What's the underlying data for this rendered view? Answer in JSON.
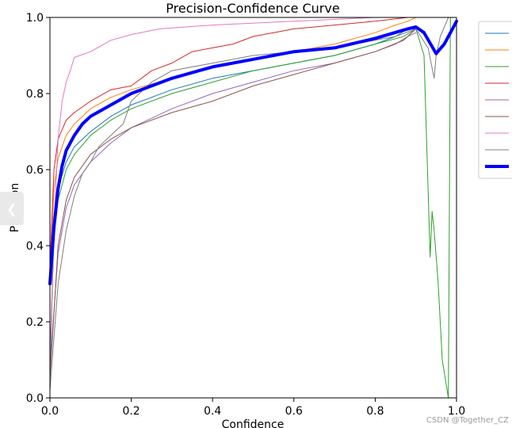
{
  "watermark": "CSDN @Together_CZ",
  "colors": {
    "background": "#ffffff",
    "axis": "#000000",
    "legend_border": "#cccccc",
    "side_handle": "#e9e9e9"
  },
  "side_handle_icon": "chevron-left-icon",
  "chart_data": {
    "type": "line",
    "title": "Precision-Confidence Curve",
    "xlabel": "Confidence",
    "ylabel": "Precision",
    "xlim": [
      0.0,
      1.0
    ],
    "ylim": [
      0.0,
      1.0
    ],
    "xticks": [
      "0.0",
      "0.2",
      "0.4",
      "0.6",
      "0.8",
      "1.0"
    ],
    "yticks": [
      "0.0",
      "0.2",
      "0.4",
      "0.6",
      "0.8",
      "1.0"
    ],
    "grid": false,
    "legend_placement": "outside right, partially clipped",
    "series": [
      {
        "color": "#1f77b4",
        "width": 1,
        "points": [
          [
            0,
            0.05
          ],
          [
            0.01,
            0.45
          ],
          [
            0.02,
            0.55
          ],
          [
            0.04,
            0.62
          ],
          [
            0.06,
            0.66
          ],
          [
            0.1,
            0.7
          ],
          [
            0.15,
            0.74
          ],
          [
            0.2,
            0.77
          ],
          [
            0.3,
            0.81
          ],
          [
            0.4,
            0.84
          ],
          [
            0.5,
            0.86
          ],
          [
            0.6,
            0.88
          ],
          [
            0.7,
            0.9
          ],
          [
            0.8,
            0.93
          ],
          [
            0.85,
            0.95
          ],
          [
            0.88,
            0.97
          ],
          [
            0.9,
            0.97
          ]
        ]
      },
      {
        "color": "#ff7f0e",
        "width": 1,
        "points": [
          [
            0,
            0.3
          ],
          [
            0.01,
            0.55
          ],
          [
            0.02,
            0.63
          ],
          [
            0.04,
            0.69
          ],
          [
            0.06,
            0.72
          ],
          [
            0.1,
            0.76
          ],
          [
            0.15,
            0.79
          ],
          [
            0.2,
            0.81
          ],
          [
            0.3,
            0.84
          ],
          [
            0.4,
            0.87
          ],
          [
            0.5,
            0.89
          ],
          [
            0.6,
            0.91
          ],
          [
            0.7,
            0.93
          ],
          [
            0.8,
            0.96
          ],
          [
            0.85,
            0.98
          ],
          [
            0.88,
            0.99
          ],
          [
            0.9,
            1.0
          ]
        ]
      },
      {
        "color": "#2ca02c",
        "width": 1,
        "points": [
          [
            0,
            0.1
          ],
          [
            0.01,
            0.42
          ],
          [
            0.02,
            0.52
          ],
          [
            0.04,
            0.6
          ],
          [
            0.06,
            0.64
          ],
          [
            0.1,
            0.69
          ],
          [
            0.15,
            0.73
          ],
          [
            0.2,
            0.76
          ],
          [
            0.3,
            0.8
          ],
          [
            0.4,
            0.83
          ],
          [
            0.5,
            0.86
          ],
          [
            0.6,
            0.88
          ],
          [
            0.7,
            0.9
          ],
          [
            0.8,
            0.93
          ],
          [
            0.87,
            0.95
          ],
          [
            0.9,
            0.97
          ],
          [
            0.92,
            0.9
          ],
          [
            0.93,
            0.55
          ],
          [
            0.935,
            0.37
          ],
          [
            0.94,
            0.49
          ],
          [
            0.945,
            0.44
          ],
          [
            0.955,
            0.3
          ],
          [
            0.965,
            0.1
          ],
          [
            0.98,
            0.0
          ],
          [
            0.985,
            1.0
          ]
        ]
      },
      {
        "color": "#d62728",
        "width": 1,
        "points": [
          [
            0,
            0.35
          ],
          [
            0.01,
            0.6
          ],
          [
            0.02,
            0.68
          ],
          [
            0.04,
            0.73
          ],
          [
            0.06,
            0.75
          ],
          [
            0.1,
            0.78
          ],
          [
            0.15,
            0.81
          ],
          [
            0.2,
            0.82
          ],
          [
            0.25,
            0.86
          ],
          [
            0.3,
            0.88
          ],
          [
            0.35,
            0.91
          ],
          [
            0.4,
            0.92
          ],
          [
            0.45,
            0.93
          ],
          [
            0.5,
            0.95
          ],
          [
            0.55,
            0.96
          ],
          [
            0.6,
            0.97
          ],
          [
            0.7,
            0.98
          ],
          [
            0.8,
            0.99
          ],
          [
            0.88,
            1.0
          ]
        ]
      },
      {
        "color": "#9467bd",
        "width": 1,
        "points": [
          [
            0,
            0.08
          ],
          [
            0.02,
            0.38
          ],
          [
            0.04,
            0.5
          ],
          [
            0.06,
            0.56
          ],
          [
            0.1,
            0.62
          ],
          [
            0.15,
            0.67
          ],
          [
            0.2,
            0.71
          ],
          [
            0.3,
            0.76
          ],
          [
            0.4,
            0.8
          ],
          [
            0.5,
            0.83
          ],
          [
            0.6,
            0.86
          ],
          [
            0.7,
            0.88
          ],
          [
            0.8,
            0.91
          ],
          [
            0.85,
            0.93
          ],
          [
            0.88,
            0.95
          ],
          [
            0.9,
            0.96
          ]
        ]
      },
      {
        "color": "#8c564b",
        "width": 1,
        "points": [
          [
            0,
            0.05
          ],
          [
            0.02,
            0.4
          ],
          [
            0.04,
            0.52
          ],
          [
            0.06,
            0.58
          ],
          [
            0.1,
            0.64
          ],
          [
            0.15,
            0.68
          ],
          [
            0.2,
            0.71
          ],
          [
            0.3,
            0.75
          ],
          [
            0.4,
            0.78
          ],
          [
            0.5,
            0.82
          ],
          [
            0.6,
            0.85
          ],
          [
            0.7,
            0.88
          ],
          [
            0.8,
            0.91
          ],
          [
            0.87,
            0.94
          ],
          [
            0.9,
            0.97
          ]
        ]
      },
      {
        "color": "#e377c2",
        "width": 1,
        "points": [
          [
            0,
            0.1
          ],
          [
            0.01,
            0.45
          ],
          [
            0.02,
            0.68
          ],
          [
            0.03,
            0.78
          ],
          [
            0.04,
            0.83
          ],
          [
            0.05,
            0.86
          ],
          [
            0.06,
            0.895
          ],
          [
            0.1,
            0.91
          ],
          [
            0.15,
            0.94
          ],
          [
            0.2,
            0.955
          ],
          [
            0.27,
            0.97
          ],
          [
            0.4,
            0.98
          ],
          [
            0.6,
            0.99
          ],
          [
            0.8,
            1.0
          ]
        ]
      },
      {
        "color": "#7f7f7f",
        "width": 1,
        "points": [
          [
            0,
            0.02
          ],
          [
            0.02,
            0.3
          ],
          [
            0.04,
            0.44
          ],
          [
            0.06,
            0.53
          ],
          [
            0.08,
            0.59
          ],
          [
            0.1,
            0.62
          ],
          [
            0.12,
            0.66
          ],
          [
            0.15,
            0.69
          ],
          [
            0.18,
            0.72
          ],
          [
            0.2,
            0.78
          ],
          [
            0.25,
            0.83
          ],
          [
            0.3,
            0.86
          ],
          [
            0.4,
            0.88
          ],
          [
            0.5,
            0.9
          ],
          [
            0.6,
            0.91
          ],
          [
            0.7,
            0.92
          ],
          [
            0.8,
            0.94
          ],
          [
            0.85,
            0.95
          ],
          [
            0.9,
            0.97
          ],
          [
            0.93,
            0.92
          ],
          [
            0.945,
            0.84
          ],
          [
            0.95,
            0.9
          ],
          [
            0.96,
            0.95
          ],
          [
            0.98,
            1.0
          ]
        ]
      },
      {
        "color": "#0000ff",
        "width": 4,
        "points": [
          [
            0,
            0.3
          ],
          [
            0.01,
            0.45
          ],
          [
            0.02,
            0.55
          ],
          [
            0.03,
            0.61
          ],
          [
            0.04,
            0.65
          ],
          [
            0.06,
            0.69
          ],
          [
            0.08,
            0.72
          ],
          [
            0.1,
            0.74
          ],
          [
            0.15,
            0.77
          ],
          [
            0.2,
            0.8
          ],
          [
            0.3,
            0.84
          ],
          [
            0.4,
            0.87
          ],
          [
            0.5,
            0.89
          ],
          [
            0.6,
            0.91
          ],
          [
            0.7,
            0.92
          ],
          [
            0.8,
            0.945
          ],
          [
            0.88,
            0.97
          ],
          [
            0.9,
            0.975
          ],
          [
            0.92,
            0.96
          ],
          [
            0.95,
            0.905
          ],
          [
            0.97,
            0.93
          ],
          [
            0.99,
            0.97
          ],
          [
            1.0,
            0.99
          ]
        ]
      }
    ]
  }
}
